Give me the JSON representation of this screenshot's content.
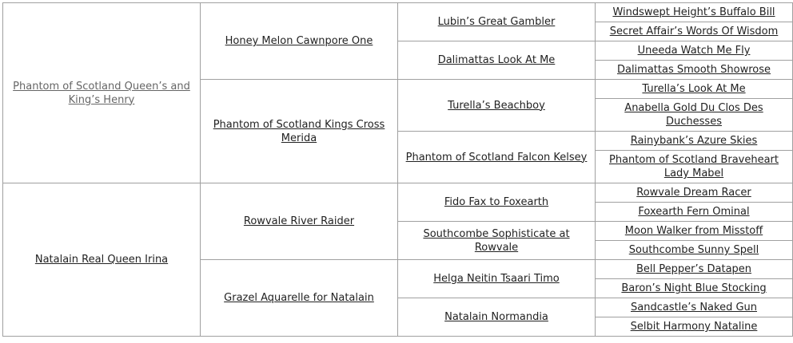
{
  "pedigree": {
    "sire": {
      "name": "Phantom of Scotland Queen’s and King’s Henry",
      "sire": {
        "name": "Honey Melon Cawnpore One",
        "sire": {
          "name": "Lubin’s Great Gambler",
          "sire": "Windswept Height’s Buffalo Bill",
          "dam": "Secret Affair’s Words Of Wisdom"
        },
        "dam": {
          "name": "Dalimattas Look At Me",
          "sire": "Uneeda Watch Me Fly",
          "dam": "Dalimattas Smooth Showrose"
        }
      },
      "dam": {
        "name": "Phantom of Scotland Kings Cross Merida",
        "sire": {
          "name": "Turella’s Beachboy",
          "sire": "Turella’s Look At Me",
          "dam": "Anabella Gold Du Clos Des Duchesses"
        },
        "dam": {
          "name": "Phantom of Scotland Falcon Kelsey",
          "sire": "Rainybank’s Azure Skies",
          "dam": "Phantom of Scotland Braveheart Lady Mabel"
        }
      }
    },
    "dam": {
      "name": "Natalain Real Queen Irina",
      "sire": {
        "name": "Rowvale River Raider",
        "sire": {
          "name": "Fido Fax to Foxearth",
          "sire": "Rowvale Dream Racer",
          "dam": "Foxearth Fern Ominal"
        },
        "dam": {
          "name": "Southcombe Sophisticate at Rowvale",
          "sire": "Moon Walker from Misstoff",
          "dam": "Southcombe Sunny Spell"
        }
      },
      "dam": {
        "name": "Grazel Aquarelle for Natalain",
        "sire": {
          "name": "Helga Neitin Tsaari Timo",
          "sire": "Bell Pepper’s Datapen",
          "dam": "Baron’s Night Blue Stocking"
        },
        "dam": {
          "name": "Natalain Normandia",
          "sire": "Sandcastle’s Naked Gun",
          "dam": "Selbit Harmony Nataline"
        }
      }
    }
  },
  "colors": {
    "link": "#222222",
    "visited_link": "#666666",
    "border": "#a0a0a0"
  }
}
